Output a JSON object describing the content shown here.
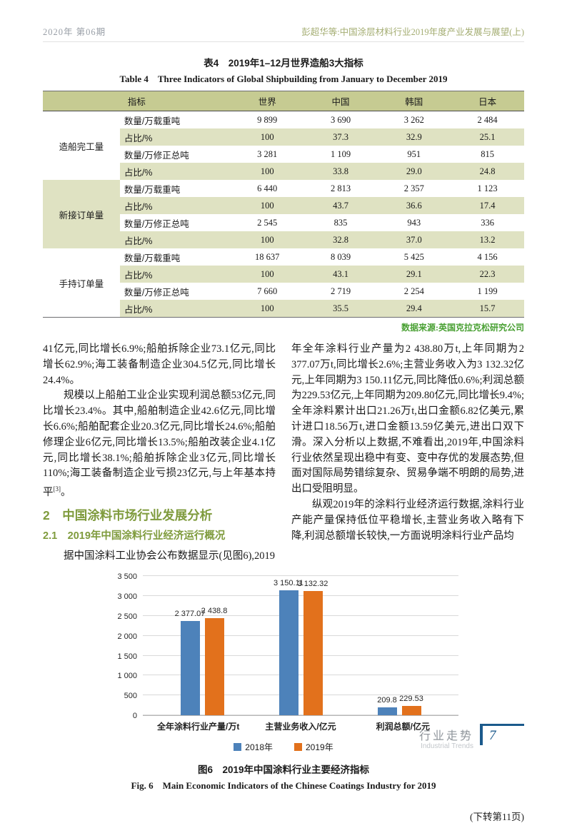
{
  "page": {
    "header_left": "2020年 第06期",
    "header_right": "彭超华等:中国涂层材料行业2019年度产业发展与展望(上)",
    "continued": "(下转第11页)"
  },
  "table4": {
    "caption_zh": "表4　2019年1–12月世界造船3大指标",
    "caption_en": "Table 4　Three Indicators of Global Shipbuilding from January to December 2019",
    "headers": [
      "指标",
      "世界",
      "中国",
      "韩国",
      "日本"
    ],
    "groups": [
      {
        "name": "造船完工量",
        "rows": [
          {
            "metric": "数量/万载重吨",
            "values": [
              "9 899",
              "3 690",
              "3 262",
              "2 484"
            ]
          },
          {
            "metric": "占比/%",
            "values": [
              "100",
              "37.3",
              "32.9",
              "25.1"
            ]
          },
          {
            "metric": "数量/万修正总吨",
            "values": [
              "3 281",
              "1 109",
              "951",
              "815"
            ]
          },
          {
            "metric": "占比/%",
            "values": [
              "100",
              "33.8",
              "29.0",
              "24.8"
            ]
          }
        ]
      },
      {
        "name": "新接订单量",
        "rows": [
          {
            "metric": "数量/万载重吨",
            "values": [
              "6 440",
              "2 813",
              "2 357",
              "1 123"
            ]
          },
          {
            "metric": "占比/%",
            "values": [
              "100",
              "43.7",
              "36.6",
              "17.4"
            ]
          },
          {
            "metric": "数量/万修正总吨",
            "values": [
              "2 545",
              "835",
              "943",
              "336"
            ]
          },
          {
            "metric": "占比/%",
            "values": [
              "100",
              "32.8",
              "37.0",
              "13.2"
            ]
          }
        ]
      },
      {
        "name": "手持订单量",
        "rows": [
          {
            "metric": "数量/万载重吨",
            "values": [
              "18 637",
              "8 039",
              "5 425",
              "4 156"
            ]
          },
          {
            "metric": "占比/%",
            "values": [
              "100",
              "43.1",
              "29.1",
              "22.3"
            ]
          },
          {
            "metric": "数量/万修正总吨",
            "values": [
              "7 660",
              "2 719",
              "2 254",
              "1 199"
            ]
          },
          {
            "metric": "占比/%",
            "values": [
              "100",
              "35.5",
              "29.4",
              "15.7"
            ]
          }
        ]
      }
    ],
    "source": "数据来源:英国克拉克松研究公司"
  },
  "left_column": {
    "p1": "41亿元,同比增长6.9%;船舶拆除企业73.1亿元,同比增长62.9%;海工装备制造企业304.5亿元,同比增长24.4%。",
    "p2_main": "规模以上船舶工业企业实现利润总额53亿元,同比增长23.4%。其中,船舶制造企业42.6亿元,同比增长6.6%;船舶配套企业20.3亿元,同比增长24.6%;船舶修理企业6亿元,同比增长13.5%;船舶改装企业4.1亿元,同比增长38.1%;船舶拆除企业3亿元,同比增长110%;海工装备制造企业亏损23亿元,与上年基本持平",
    "p2_sup": "[3]",
    "p2_end": "。",
    "h2": "2　中国涂料市场行业发展分析",
    "h3": "2.1　2019年中国涂料行业经济运行概况",
    "p3": "据中国涂料工业协会公布数据显示(见图6),2019"
  },
  "right_column": {
    "p1": "年全年涂料行业产量为2 438.80万t,上年同期为2 377.07万t,同比增长2.6%;主营业务收入为3 132.32亿元,上年同期为3 150.11亿元,同比降低0.6%;利润总额为229.53亿元,上年同期为209.80亿元,同比增长9.4%;全年涂料累计出口21.26万t,出口金额6.82亿美元,累计进口18.56万t,进口金额13.59亿美元,进出口双下滑。深入分析以上数据,不难看出,2019年,中国涂料行业依然呈现出稳中有变、变中存优的发展态势,但面对国际局势错综复杂、贸易争端不明朗的局势,进出口受阻明显。",
    "p2": "纵观2019年的涂料行业经济运行数据,涂料行业产能产量保持低位平稳增长,主营业务收入略有下降,利润总额增长较快,一方面说明涂料行业产品均"
  },
  "figure6": {
    "caption_zh": "图6　2019年中国涂料行业主要经济指标",
    "caption_en": "Fig. 6　Main Economic Indicators of the Chinese Coatings Industry for 2019"
  },
  "chart_data": {
    "type": "bar",
    "categories": [
      "全年涂料行业产量/万t",
      "主营业务收入/亿元",
      "利润总额/亿元"
    ],
    "series": [
      {
        "name": "2018年",
        "color": "#4d82ba",
        "values": [
          2377.07,
          3150.11,
          209.8
        ],
        "labels": [
          "2 377.07",
          "3 150.11",
          "209.8"
        ]
      },
      {
        "name": "2019年",
        "color": "#e2711c",
        "values": [
          2438.8,
          3132.32,
          229.53
        ],
        "labels": [
          "2 438.8",
          "3 132.32",
          "229.53"
        ]
      }
    ],
    "title": "图6 2019年中国涂料行业主要经济指标",
    "xlabel": "",
    "ylabel": "",
    "ylim": [
      0,
      3500
    ],
    "ytick_step": 500,
    "ytick_labels": [
      "0",
      "500",
      "1 000",
      "1 500",
      "2 000",
      "2 500",
      "3 000",
      "3 500"
    ],
    "grid": true,
    "legend_position": "bottom"
  },
  "footer": {
    "label_zh": "行业走势",
    "label_en": "Industrial Trends",
    "page_number": "7"
  }
}
